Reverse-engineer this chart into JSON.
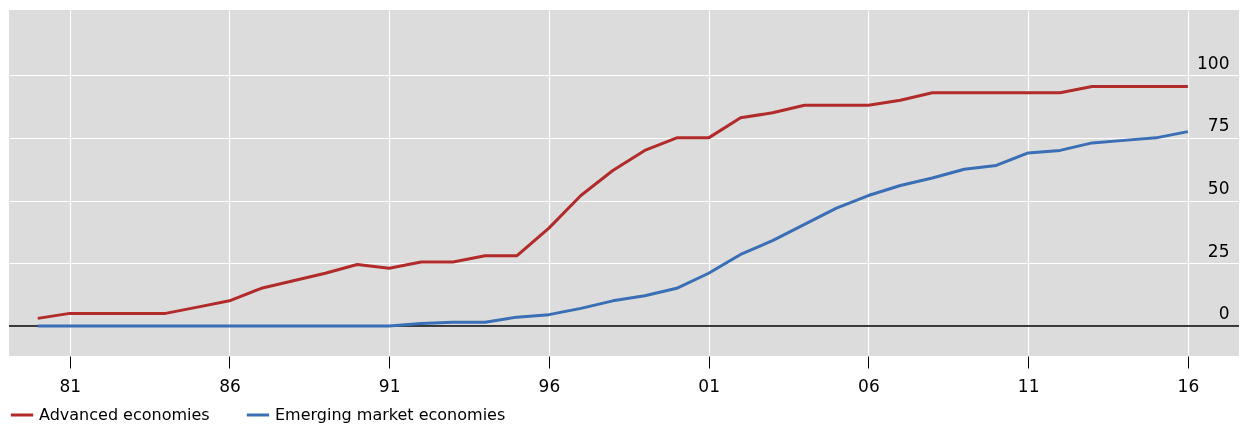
{
  "chart_data": {
    "type": "line",
    "x": [
      1980,
      1981,
      1982,
      1983,
      1984,
      1985,
      1986,
      1987,
      1988,
      1989,
      1990,
      1991,
      1992,
      1993,
      1994,
      1995,
      1996,
      1997,
      1998,
      1999,
      2000,
      2001,
      2002,
      2003,
      2004,
      2005,
      2006,
      2007,
      2008,
      2009,
      2010,
      2011,
      2012,
      2013,
      2014,
      2015,
      2016
    ],
    "series": [
      {
        "name": "Advanced economies",
        "color": "#b22b2b",
        "values": [
          3,
          5,
          5,
          5,
          5,
          7.5,
          10,
          15,
          18,
          21,
          24.5,
          23,
          25.5,
          25.5,
          28,
          28,
          39,
          52,
          62,
          70,
          75,
          75,
          83,
          85,
          88,
          88,
          88,
          90,
          93,
          93,
          93,
          93,
          93,
          95.5,
          95.5,
          95.5,
          95.5
        ]
      },
      {
        "name": "Emerging market economies",
        "color": "#3a6eb5",
        "values": [
          0,
          0,
          0,
          0,
          0,
          0,
          0,
          0,
          0,
          0,
          0,
          0,
          1,
          1.5,
          1.5,
          3.5,
          4.5,
          7,
          10,
          12,
          15,
          21,
          28.5,
          34,
          40.5,
          47,
          52,
          56,
          59,
          62.5,
          64,
          69,
          70,
          73,
          74,
          75,
          77.5
        ]
      }
    ],
    "xlim": [
      1979.1,
      2017.6
    ],
    "xticks": [
      {
        "value": 1981,
        "label": "81"
      },
      {
        "value": 1986,
        "label": "86"
      },
      {
        "value": 1991,
        "label": "91"
      },
      {
        "value": 1996,
        "label": "96"
      },
      {
        "value": 2001,
        "label": "01"
      },
      {
        "value": 2006,
        "label": "06"
      },
      {
        "value": 2011,
        "label": "11"
      },
      {
        "value": 2016,
        "label": "16"
      }
    ],
    "ylim": [
      -12,
      126
    ],
    "yticks": [
      0,
      25,
      50,
      75,
      100
    ],
    "ref_lines": [
      {
        "axis": "y",
        "value": 0,
        "color": "#000000"
      }
    ],
    "grid": true,
    "legend": "bottom left",
    "line_style": "solid",
    "marker": "none"
  }
}
